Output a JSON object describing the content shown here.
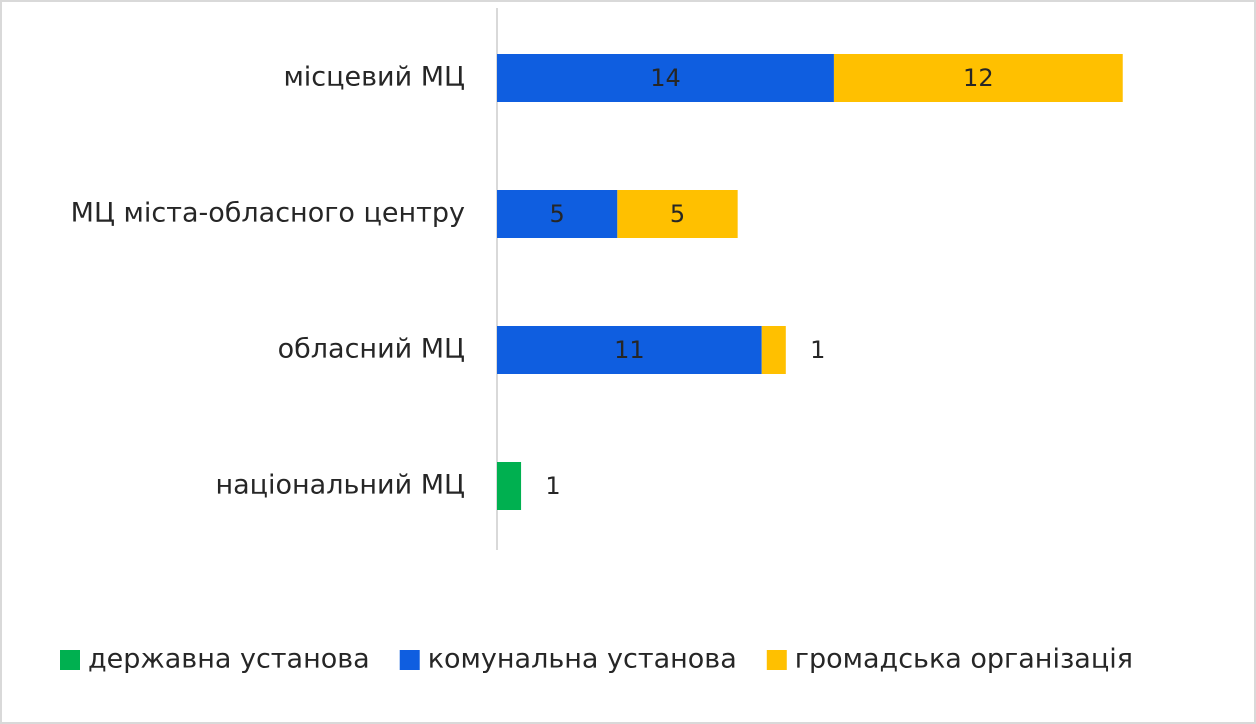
{
  "chart_data": {
    "type": "stacked-barh",
    "categories": [
      "місцевий МЦ",
      "МЦ міста-обласного центру",
      "обласний МЦ",
      "національний МЦ"
    ],
    "series": [
      {
        "name": "державна установа",
        "color": "#00b050",
        "values": [
          0,
          0,
          0,
          1
        ]
      },
      {
        "name": "комунальна установа",
        "color": "#0f5ee0",
        "values": [
          14,
          5,
          11,
          0
        ]
      },
      {
        "name": "громадська організація",
        "color": "#ffc000",
        "values": [
          12,
          5,
          1,
          0
        ]
      }
    ],
    "xlim": [
      0,
      30
    ],
    "legend": "bottom"
  }
}
